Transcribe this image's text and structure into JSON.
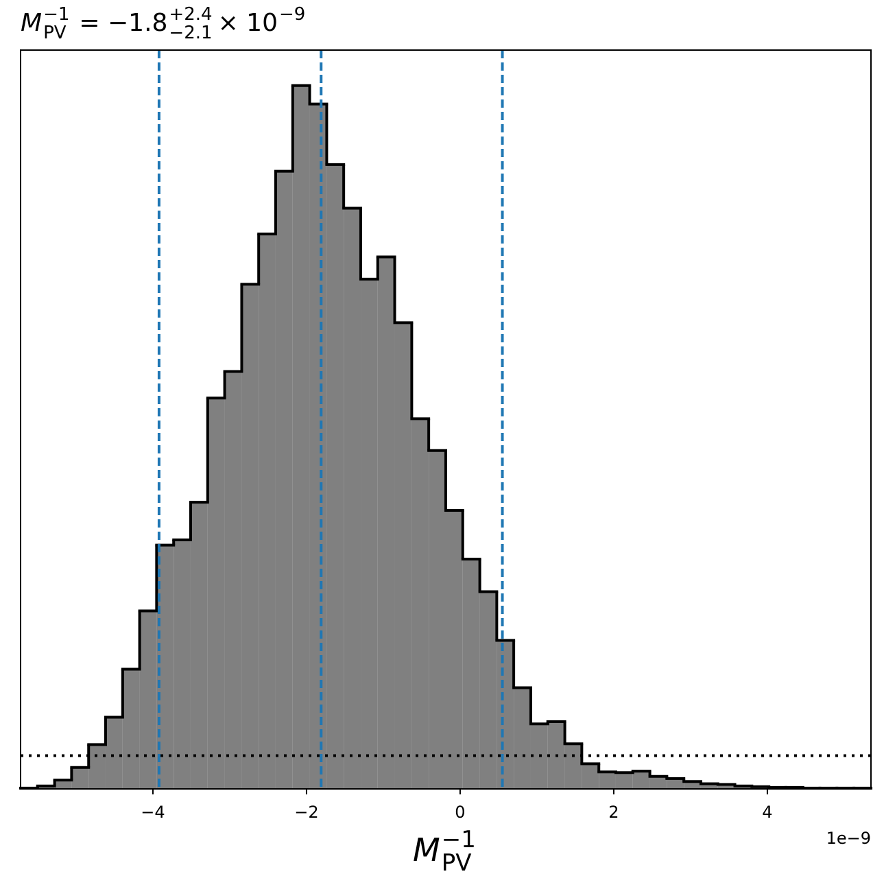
{
  "chart_data": {
    "type": "histogram",
    "title": {
      "symbol": "M",
      "sub": "PV",
      "sup": "−1",
      "text": "= −1.8",
      "upper": "+2.4",
      "lower": "−2.1",
      "tail": "× 10",
      "exp": "−9"
    },
    "x_label": {
      "symbol": "M",
      "sub": "PV",
      "sup": "−1"
    },
    "offset_text": "1e−9",
    "bins": [
      -5.723,
      -5.502,
      -5.28,
      -5.059,
      -4.837,
      -4.616,
      -4.394,
      -4.173,
      -3.952,
      -3.73,
      -3.509,
      -3.287,
      -3.066,
      -2.844,
      -2.623,
      -2.402,
      -2.18,
      -1.959,
      -1.737,
      -1.516,
      -1.294,
      -1.073,
      -0.852,
      -0.63,
      -0.409,
      -0.187,
      0.034,
      0.256,
      0.477,
      0.698,
      0.92,
      1.141,
      1.363,
      1.584,
      1.806,
      2.027,
      2.248,
      2.47,
      2.691,
      2.913,
      3.134,
      3.356,
      3.577,
      3.798,
      4.02,
      4.241,
      4.463,
      4.684,
      4.906,
      5.127,
      5.349
    ],
    "values": [
      0.001,
      0.004,
      0.012,
      0.029,
      0.06,
      0.097,
      0.162,
      0.241,
      0.33,
      0.337,
      0.388,
      0.529,
      0.565,
      0.683,
      0.751,
      0.836,
      0.952,
      0.927,
      0.845,
      0.786,
      0.69,
      0.72,
      0.631,
      0.501,
      0.458,
      0.377,
      0.311,
      0.267,
      0.201,
      0.137,
      0.088,
      0.091,
      0.061,
      0.034,
      0.023,
      0.022,
      0.024,
      0.017,
      0.014,
      0.01,
      0.007,
      0.006,
      0.004,
      0.003,
      0.002,
      0.002,
      0.001,
      0.001,
      0.001,
      0.001
    ],
    "color": "#808080",
    "edge_color": "#000000",
    "vlines": [
      -3.92,
      -1.81,
      0.55
    ],
    "vline_color": "#1f77b4",
    "hline": 0.045,
    "xlim": [
      -5.723,
      5.349
    ],
    "ylim": [
      0,
      1
    ],
    "xticks": [
      {
        "value": -4,
        "label": "−4"
      },
      {
        "value": -2,
        "label": "−2"
      },
      0,
      2,
      4
    ]
  }
}
